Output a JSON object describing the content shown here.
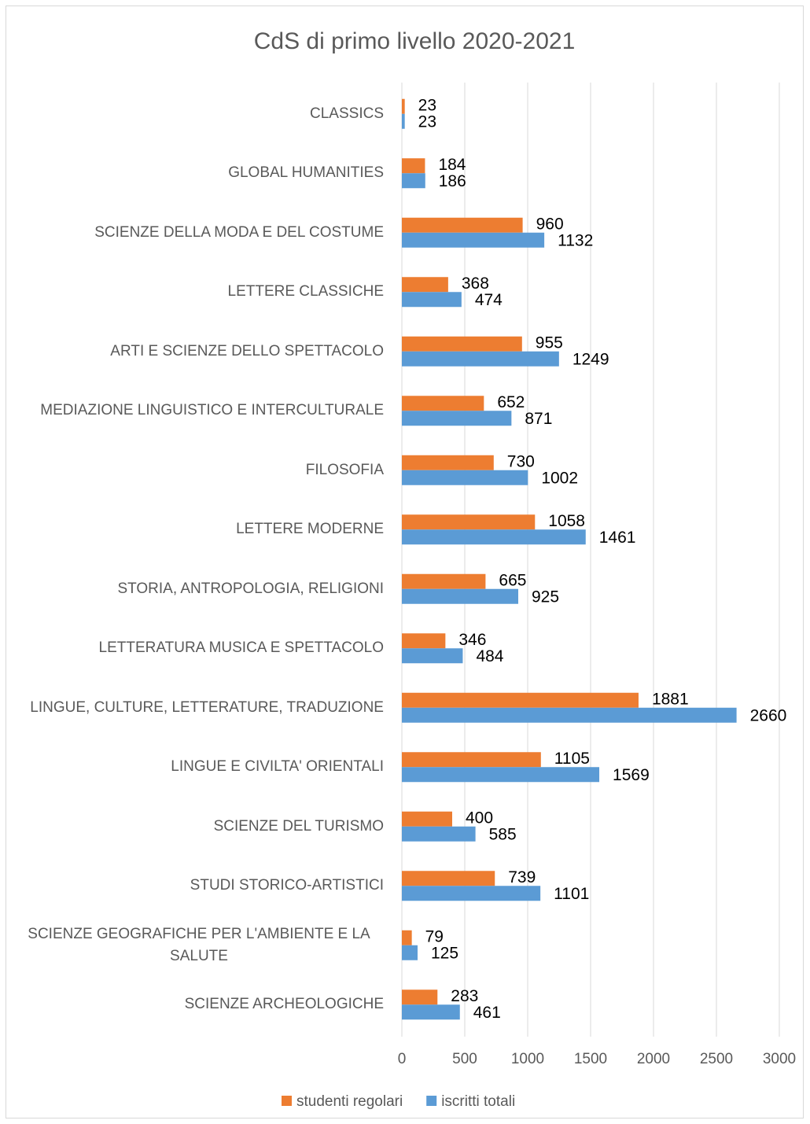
{
  "chart_data": {
    "type": "bar",
    "orientation": "horizontal",
    "title": "CdS di primo livello 2020-2021",
    "categories": [
      "CLASSICS",
      "GLOBAL HUMANITIES",
      "SCIENZE DELLA MODA E DEL COSTUME",
      "LETTERE CLASSICHE",
      "ARTI E SCIENZE DELLO SPETTACOLO",
      "MEDIAZIONE LINGUISTICO E INTERCULTURALE",
      "FILOSOFIA",
      "LETTERE MODERNE",
      "STORIA, ANTROPOLOGIA, RELIGIONI",
      "LETTERATURA MUSICA E SPETTACOLO",
      "LINGUE, CULTURE, LETTERATURE, TRADUZIONE",
      "LINGUE E CIVILTA' ORIENTALI",
      "SCIENZE DEL TURISMO",
      "STUDI STORICO-ARTISTICI",
      "SCIENZE GEOGRAFICHE PER L'AMBIENTE E LA SALUTE",
      "SCIENZE ARCHEOLOGICHE"
    ],
    "series": [
      {
        "name": "studenti regolari",
        "color": "#ed7d31",
        "values": [
          23,
          184,
          960,
          368,
          955,
          652,
          730,
          1058,
          665,
          346,
          1881,
          1105,
          400,
          739,
          79,
          283
        ]
      },
      {
        "name": "iscritti totali",
        "color": "#5b9bd5",
        "values": [
          23,
          186,
          1132,
          474,
          1249,
          871,
          1002,
          1461,
          925,
          484,
          2660,
          1569,
          585,
          1101,
          125,
          461
        ]
      }
    ],
    "xlim": [
      0,
      3000
    ],
    "xticks": [
      0,
      500,
      1000,
      1500,
      2000,
      2500,
      3000
    ],
    "grid": true,
    "legend": "bottom",
    "data_labels": true
  }
}
